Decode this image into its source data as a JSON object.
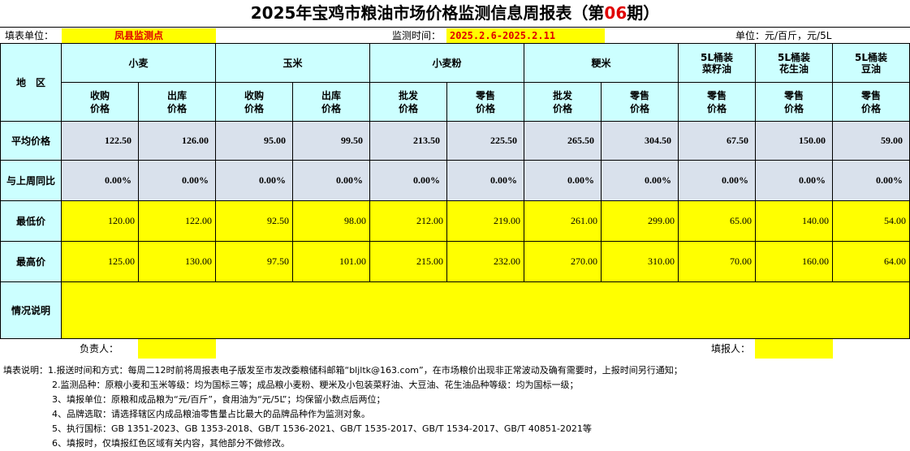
{
  "title": {
    "pre": "2025年宝鸡市粮油市场价格监测信息周报表（第",
    "num": "06",
    "post": "期）"
  },
  "info": {
    "unit_label": "填表单位：",
    "unit_value": "凤县监测点",
    "time_label": "监测时间：",
    "time_value": "2025.2.6-2025.2.11",
    "measure": "单位：元/百斤，元/5L"
  },
  "table": {
    "region_label": "地　区",
    "groups": [
      "小麦",
      "玉米",
      "小麦粉",
      "粳米",
      "5L桶装\n菜籽油",
      "5L桶装\n花生油",
      "5L桶装\n豆油"
    ],
    "subheaders": [
      "收购\n价格",
      "出库\n价格",
      "收购\n价格",
      "出库\n价格",
      "批发\n价格",
      "零售\n价格",
      "批发\n价格",
      "零售\n价格",
      "零售\n价格",
      "零售\n价格",
      "零售\n价格"
    ],
    "rows": [
      {
        "label": "平均价格",
        "values": [
          "122.50",
          "126.00",
          "95.00",
          "99.50",
          "213.50",
          "225.50",
          "265.50",
          "304.50",
          "67.50",
          "150.00",
          "59.00"
        ]
      },
      {
        "label": "与上周同比",
        "values": [
          "0.00%",
          "0.00%",
          "0.00%",
          "0.00%",
          "0.00%",
          "0.00%",
          "0.00%",
          "0.00%",
          "0.00%",
          "0.00%",
          "0.00%"
        ]
      },
      {
        "label": "最低价",
        "values": [
          "120.00",
          "122.00",
          "92.50",
          "98.00",
          "212.00",
          "219.00",
          "261.00",
          "299.00",
          "65.00",
          "140.00",
          "54.00"
        ]
      },
      {
        "label": "最高价",
        "values": [
          "125.00",
          "130.00",
          "97.50",
          "101.00",
          "215.00",
          "232.00",
          "270.00",
          "310.00",
          "70.00",
          "160.00",
          "64.00"
        ]
      }
    ],
    "situation_label": "情况说明",
    "situation_value": ""
  },
  "footer": {
    "responsible_label": "负责人：",
    "responsible_value": "",
    "reporter_label": "填报人：",
    "reporter_value": ""
  },
  "notes": {
    "prefix": "填表说明：",
    "lines": [
      "1.报送时间和方式：每周二12时前将周报表电子版发至市发改委粮储科邮箱“bljltk@163.com”，在市场粮价出现非正常波动及确有需要时，上报时间另行通知；",
      "2.监测品种：原粮小麦和玉米等级：均为国标三等；成品粮小麦粉、粳米及小包装菜籽油、大豆油、花生油品种等级：均为国标一级；",
      "3、填报单位：原粮和成品粮为“元/百斤”，食用油为“元/5L”；均保留小数点后两位；",
      "4、品牌选取：请选择辖区内成品粮油零售量占比最大的品牌品种作为监测对象。",
      "5、执行国标：GB 1351-2023、GB 1353-2018、GB/T 1536-2021、GB/T 1535-2017、GB/T 1534-2017、GB/T 40851-2021等",
      "6、填报时，仅填报红色区域有关内容，其他部分不做修改。"
    ]
  }
}
